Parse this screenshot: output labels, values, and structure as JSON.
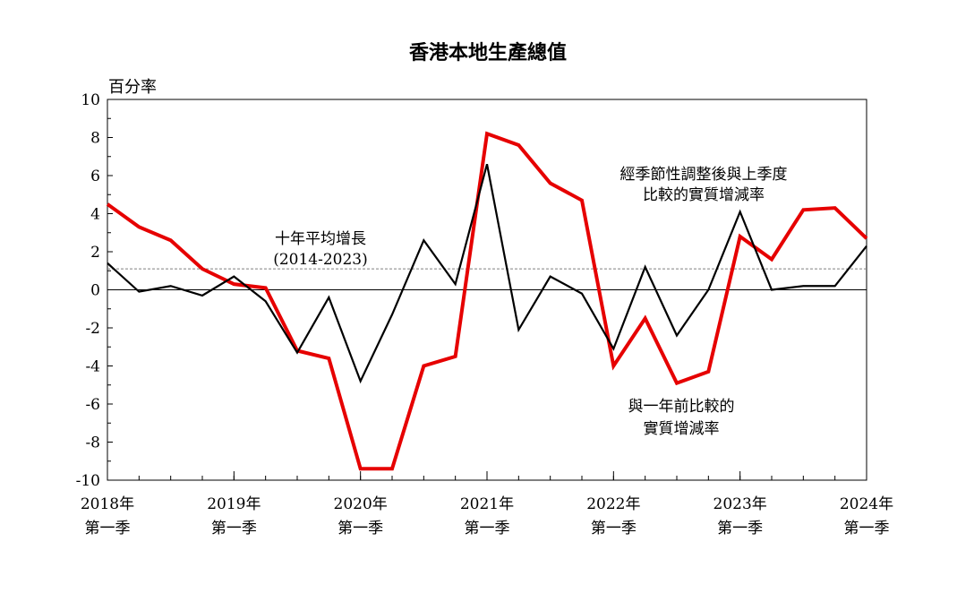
{
  "chart_data": {
    "type": "line",
    "title": "香港本地生產總值",
    "ylabel": "百分率",
    "xlabel": "",
    "ylim": [
      -10,
      10
    ],
    "yticks": [
      10,
      8,
      6,
      4,
      2,
      0,
      -2,
      -4,
      -6,
      -8,
      -10
    ],
    "x_tick_labels": [
      {
        "year": "2018年",
        "quarter": "第一季",
        "index": 0
      },
      {
        "year": "2019年",
        "quarter": "第一季",
        "index": 4
      },
      {
        "year": "2020年",
        "quarter": "第一季",
        "index": 8
      },
      {
        "year": "2021年",
        "quarter": "第一季",
        "index": 12
      },
      {
        "year": "2022年",
        "quarter": "第一季",
        "index": 16
      },
      {
        "year": "2023年",
        "quarter": "第一季",
        "index": 20
      },
      {
        "year": "2024年",
        "quarter": "第一季",
        "index": 24
      }
    ],
    "categories": [
      "2018Q1",
      "2018Q2",
      "2018Q3",
      "2018Q4",
      "2019Q1",
      "2019Q2",
      "2019Q3",
      "2019Q4",
      "2020Q1",
      "2020Q2",
      "2020Q3",
      "2020Q4",
      "2021Q1",
      "2021Q2",
      "2021Q3",
      "2021Q4",
      "2022Q1",
      "2022Q2",
      "2022Q3",
      "2022Q4",
      "2023Q1",
      "2023Q2",
      "2023Q3",
      "2023Q4",
      "2024Q1"
    ],
    "series": [
      {
        "name": "與一年前比較的實質增減率",
        "color": "#e60000",
        "values": [
          4.5,
          3.3,
          2.6,
          1.1,
          0.3,
          0.1,
          -3.2,
          -3.6,
          -9.4,
          -9.4,
          -4.0,
          -3.5,
          8.2,
          7.6,
          5.6,
          4.7,
          -4.0,
          -1.5,
          -4.9,
          -4.3,
          2.8,
          1.6,
          4.2,
          4.3,
          2.7
        ]
      },
      {
        "name": "經季節性調整後與上季度比較的實質增減率",
        "color": "#000000",
        "values": [
          1.4,
          -0.1,
          0.2,
          -0.3,
          0.7,
          -0.6,
          -3.3,
          -0.4,
          -4.8,
          -1.3,
          2.6,
          0.3,
          6.6,
          -2.1,
          0.7,
          -0.2,
          -3.1,
          1.2,
          -2.4,
          0.0,
          4.1,
          0.0,
          0.2,
          0.2,
          2.3
        ]
      }
    ],
    "reference_line": {
      "name": "十年平均增長",
      "period": "(2014-2023)",
      "value": 1.1,
      "color": "#808080"
    },
    "annotations": {
      "qoq_label": [
        "經季節性調整後與上季度",
        "比較的實質增減率"
      ],
      "yoy_label": [
        "與一年前比較的",
        "實質增減率"
      ]
    }
  }
}
